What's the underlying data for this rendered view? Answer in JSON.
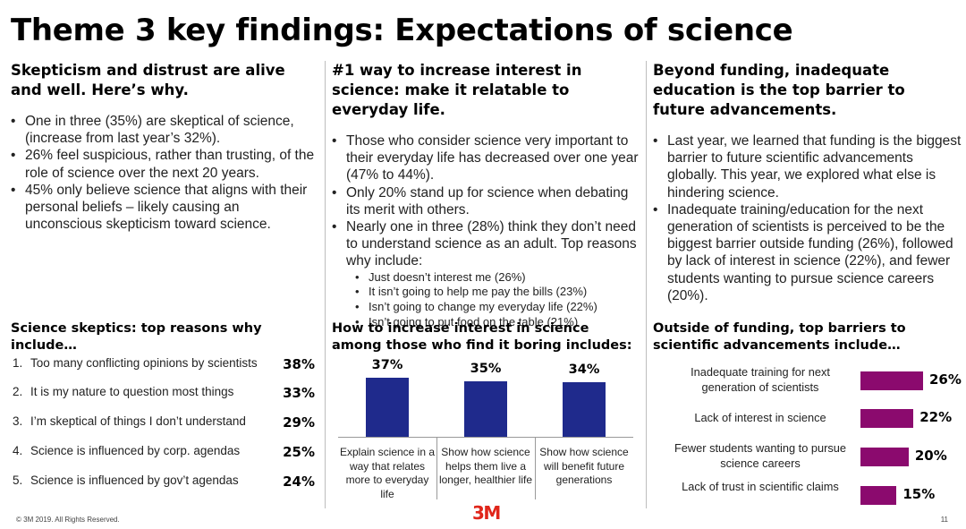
{
  "title": "Theme 3 key findings: Expectations of science",
  "col1": {
    "heading": "Skepticism and distrust are alive and well. Here’s why.",
    "bullets": [
      "One in three (35%) are skeptical of science, (increase from last year’s 32%).",
      "26% feel suspicious, rather than trusting, of the role of science over the next 20 years.",
      "45% only believe science that aligns with their personal beliefs – likely causing an unconscious skepticism toward science."
    ],
    "subheading": "Science skeptics: top reasons why include…",
    "reasons": [
      {
        "num": "1.",
        "label": "Too many conflicting opinions by scientists",
        "pct": "38%"
      },
      {
        "num": "2.",
        "label": "It is my nature to question most things",
        "pct": "33%"
      },
      {
        "num": "3.",
        "label": "I’m skeptical of things I don’t understand",
        "pct": "29%"
      },
      {
        "num": "4.",
        "label": "Science is influenced by corp. agendas",
        "pct": "25%"
      },
      {
        "num": "5.",
        "label": "Science is influenced by gov’t agendas",
        "pct": "24%"
      }
    ]
  },
  "col2": {
    "heading": "#1 way to increase interest in science: make it relatable to everyday life.",
    "bullets": [
      "Those who consider science very important to their everyday life has decreased over one year (47% to 44%).",
      "Only 20% stand up for science when debating its merit with others.",
      "Nearly one in three (28%) think they don’t need to understand science as an adult. Top reasons why include:"
    ],
    "subbullets": [
      "Just doesn’t interest me (26%)",
      "It isn’t going to help me pay the bills (23%)",
      "Isn’t going to change my everyday life (22%)",
      "Isn’t going to put food on the table (21%)"
    ],
    "subheading": "How to increase interest in science among those who find it boring includes:"
  },
  "col3": {
    "heading": "Beyond funding, inadequate education is the top barrier to future advancements.",
    "bullets": [
      "Last year, we learned that funding is the biggest barrier to future scientific advancements globally. This year, we explored what else is hindering science.",
      "Inadequate training/education for the next generation of scientists is perceived to be the biggest barrier outside funding (26%), followed by lack of interest in science (22%), and fewer students wanting to pursue science careers (20%)."
    ],
    "subheading": "Outside of funding, top barriers to scientific advancements include…"
  },
  "chart_data": [
    {
      "type": "bar",
      "categories": [
        "Explain science in a way that relates more to everyday life",
        "Show how science helps them live a longer, healthier life",
        "Show how science will benefit future generations"
      ],
      "values": [
        37,
        35,
        34
      ],
      "value_labels": [
        "37%",
        "35%",
        "34%"
      ],
      "color": "#1f2a8c"
    },
    {
      "type": "bar",
      "orientation": "horizontal",
      "categories": [
        "Inadequate training for next generation of scientists",
        "Lack of interest in science",
        "Fewer students wanting to pursue science careers",
        "Lack of trust in scientific claims"
      ],
      "values": [
        26,
        22,
        20,
        15
      ],
      "value_labels": [
        "26%",
        "22%",
        "20%",
        "15%"
      ],
      "color": "#8b0a6e"
    }
  ],
  "footer": "© 3M 2019. All Rights Reserved.",
  "page_number": "11",
  "logo_text": "3M"
}
